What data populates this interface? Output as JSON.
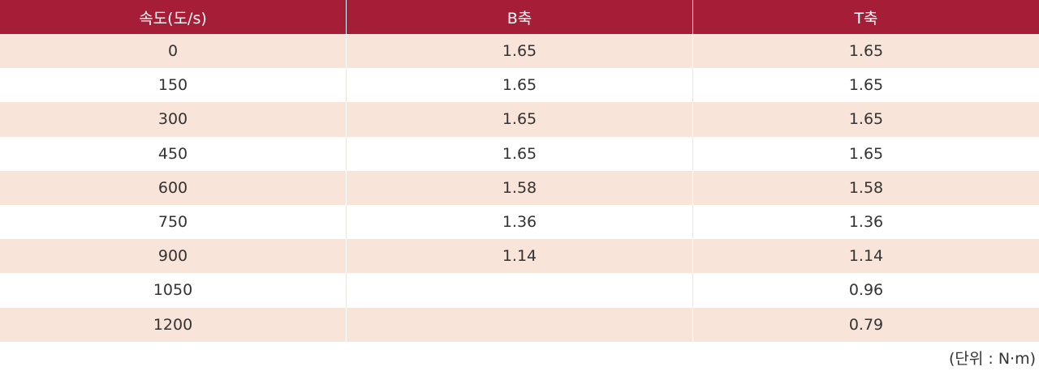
{
  "table": {
    "header": [
      "속도(도/s)",
      "B축",
      "T축"
    ],
    "rows": [
      [
        0,
        1.65,
        1.65
      ],
      [
        150,
        1.65,
        1.65
      ],
      [
        300,
        1.65,
        1.65
      ],
      [
        450,
        1.65,
        1.65
      ],
      [
        600,
        1.58,
        1.58
      ],
      [
        750,
        1.36,
        1.36
      ],
      [
        900,
        1.14,
        1.14
      ],
      [
        1050,
        null,
        0.96
      ],
      [
        1200,
        null,
        0.79
      ]
    ]
  },
  "note": "(단위 : N·m)"
}
